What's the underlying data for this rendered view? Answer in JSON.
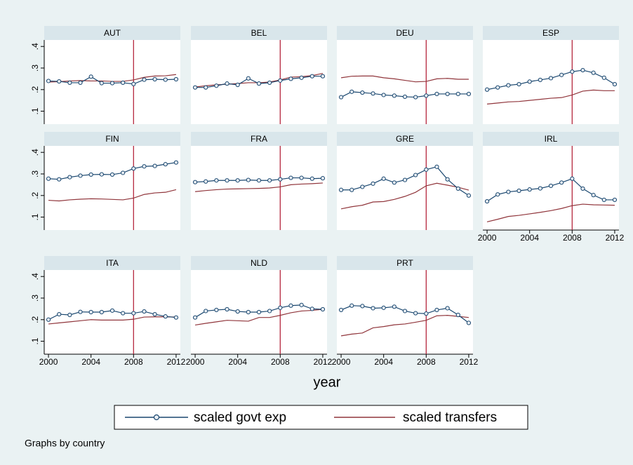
{
  "chart_data": {
    "type": "line",
    "x": [
      2000,
      2001,
      2002,
      2003,
      2004,
      2005,
      2006,
      2007,
      2008,
      2009,
      2010,
      2011,
      2012
    ],
    "xlim": [
      1999.6,
      2012.4
    ],
    "xticks": [
      2000,
      2004,
      2008,
      2012
    ],
    "ylim": [
      0.04,
      0.43
    ],
    "yticks": [
      {
        "value": 0.1,
        "label": ".1"
      },
      {
        "value": 0.2,
        "label": ".2"
      },
      {
        "value": 0.3,
        "label": ".3"
      },
      {
        "value": 0.4,
        "label": ".4"
      }
    ],
    "xlabel": "year",
    "vline": 2008,
    "vline_color": "#b5283f",
    "series": [
      {
        "name": "scaled govt exp",
        "color": "#1a476f",
        "marker": "circle"
      },
      {
        "name": "scaled transfers",
        "color": "#90353b"
      }
    ],
    "panels": [
      {
        "title": "AUT",
        "series": [
          {
            "values": [
              0.24,
              0.238,
              0.232,
              0.232,
              0.26,
              0.23,
              0.23,
              0.232,
              0.226,
              0.246,
              0.248,
              0.246,
              0.248
            ]
          },
          {
            "values": [
              0.235,
              0.237,
              0.24,
              0.242,
              0.24,
              0.24,
              0.238,
              0.238,
              0.245,
              0.257,
              0.263,
              0.264,
              0.27
            ]
          }
        ]
      },
      {
        "title": "BEL",
        "series": [
          {
            "values": [
              0.21,
              0.21,
              0.218,
              0.228,
              0.222,
              0.252,
              0.228,
              0.232,
              0.242,
              0.25,
              0.255,
              0.262,
              0.262
            ]
          },
          {
            "values": [
              0.212,
              0.218,
              0.222,
              0.225,
              0.228,
              0.232,
              0.232,
              0.235,
              0.245,
              0.258,
              0.26,
              0.265,
              0.275
            ]
          }
        ]
      },
      {
        "title": "DEU",
        "series": [
          {
            "values": [
              0.165,
              0.19,
              0.186,
              0.182,
              0.175,
              0.172,
              0.167,
              0.165,
              0.172,
              0.18,
              0.18,
              0.18,
              0.18
            ]
          },
          {
            "values": [
              0.255,
              0.262,
              0.263,
              0.263,
              0.255,
              0.25,
              0.243,
              0.236,
              0.238,
              0.25,
              0.252,
              0.248,
              0.248
            ]
          }
        ]
      },
      {
        "title": "ESP",
        "series": [
          {
            "values": [
              0.2,
              0.21,
              0.22,
              0.225,
              0.237,
              0.245,
              0.253,
              0.268,
              0.283,
              0.29,
              0.278,
              0.255,
              0.225
            ]
          },
          {
            "values": [
              0.133,
              0.138,
              0.143,
              0.145,
              0.15,
              0.155,
              0.16,
              0.163,
              0.175,
              0.193,
              0.198,
              0.195,
              0.195
            ]
          }
        ]
      },
      {
        "title": "FIN",
        "series": [
          {
            "values": [
              0.278,
              0.275,
              0.285,
              0.292,
              0.297,
              0.298,
              0.297,
              0.305,
              0.325,
              0.335,
              0.337,
              0.345,
              0.353
            ]
          },
          {
            "values": [
              0.178,
              0.175,
              0.18,
              0.183,
              0.185,
              0.184,
              0.182,
              0.18,
              0.188,
              0.205,
              0.212,
              0.215,
              0.227
            ]
          }
        ]
      },
      {
        "title": "FRA",
        "series": [
          {
            "values": [
              0.262,
              0.265,
              0.27,
              0.27,
              0.27,
              0.272,
              0.27,
              0.27,
              0.275,
              0.282,
              0.282,
              0.278,
              0.28
            ]
          },
          {
            "values": [
              0.218,
              0.223,
              0.227,
              0.23,
              0.231,
              0.232,
              0.233,
              0.235,
              0.24,
              0.25,
              0.253,
              0.255,
              0.258
            ]
          }
        ]
      },
      {
        "title": "GRE",
        "series": [
          {
            "values": [
              0.226,
              0.226,
              0.24,
              0.255,
              0.278,
              0.26,
              0.272,
              0.295,
              0.32,
              0.333,
              0.275,
              0.232,
              0.2
            ]
          },
          {
            "values": [
              0.138,
              0.148,
              0.155,
              0.17,
              0.172,
              0.182,
              0.196,
              0.215,
              0.245,
              0.257,
              0.248,
              0.238,
              0.225
            ]
          }
        ]
      },
      {
        "title": "IRL",
        "series": [
          {
            "values": [
              0.173,
              0.205,
              0.217,
              0.222,
              0.228,
              0.233,
              0.245,
              0.26,
              0.278,
              0.232,
              0.202,
              0.18,
              0.18
            ]
          },
          {
            "values": [
              0.078,
              0.09,
              0.103,
              0.108,
              0.115,
              0.122,
              0.13,
              0.14,
              0.153,
              0.16,
              0.157,
              0.156,
              0.155
            ]
          }
        ]
      },
      {
        "title": "ITA",
        "series": [
          {
            "values": [
              0.2,
              0.225,
              0.222,
              0.236,
              0.235,
              0.235,
              0.242,
              0.23,
              0.23,
              0.238,
              0.225,
              0.215,
              0.21
            ]
          },
          {
            "values": [
              0.18,
              0.185,
              0.19,
              0.195,
              0.2,
              0.198,
              0.198,
              0.198,
              0.202,
              0.212,
              0.213,
              0.213,
              0.212
            ]
          }
        ]
      },
      {
        "title": "NLD",
        "series": [
          {
            "values": [
              0.21,
              0.24,
              0.245,
              0.248,
              0.238,
              0.235,
              0.235,
              0.24,
              0.255,
              0.265,
              0.268,
              0.25,
              0.248
            ]
          },
          {
            "values": [
              0.175,
              0.183,
              0.19,
              0.197,
              0.195,
              0.193,
              0.21,
              0.21,
              0.22,
              0.232,
              0.24,
              0.243,
              0.248
            ]
          }
        ]
      },
      {
        "title": "PRT",
        "series": [
          {
            "values": [
              0.245,
              0.265,
              0.263,
              0.253,
              0.255,
              0.26,
              0.24,
              0.23,
              0.228,
              0.245,
              0.253,
              0.222,
              0.185
            ]
          },
          {
            "values": [
              0.125,
              0.133,
              0.138,
              0.162,
              0.168,
              0.176,
              0.18,
              0.188,
              0.197,
              0.218,
              0.22,
              0.215,
              0.21
            ]
          }
        ]
      }
    ],
    "note": "Graphs by country"
  }
}
